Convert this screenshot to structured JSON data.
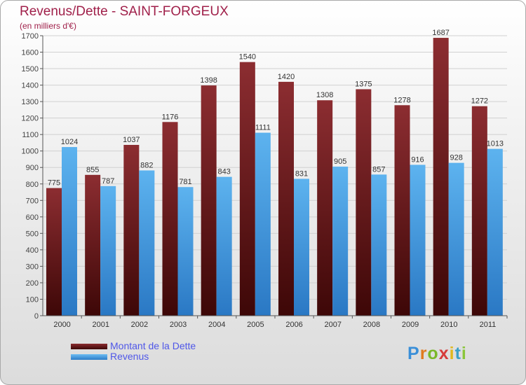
{
  "chart_data": {
    "type": "bar",
    "title": "Revenus/Dette - SAINT-FORGEUX",
    "subtitle": "(en milliers d'€)",
    "categories": [
      "2000",
      "2001",
      "2002",
      "2003",
      "2004",
      "2005",
      "2006",
      "2007",
      "2008",
      "2009",
      "2010",
      "2011"
    ],
    "series": [
      {
        "name": "Montant de la Dette",
        "color": "#7a1e22",
        "values": [
          775,
          855,
          1037,
          1176,
          1398,
          1540,
          1420,
          1308,
          1375,
          1278,
          1687,
          1272
        ]
      },
      {
        "name": "Revenus",
        "color": "#4ea6e6",
        "values": [
          1024,
          787,
          882,
          781,
          843,
          1111,
          831,
          905,
          857,
          916,
          928,
          1013
        ]
      }
    ],
    "ylim": [
      0,
      1700
    ],
    "ytick_step": 100,
    "grid": true,
    "legend_position": "bottom-left",
    "data_labels": true
  },
  "logo": {
    "letters": [
      "P",
      "r",
      "o",
      "x",
      "i",
      "t",
      "i"
    ],
    "colors": [
      "#3a8fd8",
      "#e07a1e",
      "#7ab829",
      "#d63b3b",
      "#e0b81e",
      "#3aa0c8",
      "#8ac63a"
    ]
  }
}
